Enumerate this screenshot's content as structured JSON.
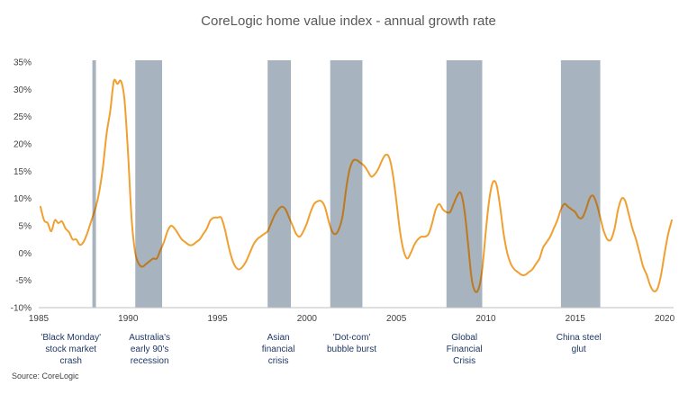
{
  "chart_data": {
    "type": "line",
    "title": "CoreLogic home value index - annual growth rate",
    "xlim": [
      1985,
      2020.5
    ],
    "ylim": [
      -10,
      35
    ],
    "grid": false,
    "y_ticks": [
      "35%",
      "30%",
      "25%",
      "20%",
      "15%",
      "10%",
      "5%",
      "0%",
      "-5%",
      "-10%"
    ],
    "x_ticks": [
      "1985",
      "1990",
      "1995",
      "2000",
      "2005",
      "2010",
      "2015",
      "2020"
    ],
    "line_color": "#F0A030",
    "line_color_in_band": "#B87A26",
    "band_color": "#A7B4C0",
    "bands": [
      {
        "start": 1988.0,
        "end": 1988.2,
        "label": [
          "'Black Monday'",
          "stock market",
          "crash"
        ],
        "label_x": 1986.8
      },
      {
        "start": 1990.4,
        "end": 1991.9,
        "label": [
          "Australia's",
          "early 90's",
          "recession"
        ],
        "label_x": 1991.2
      },
      {
        "start": 1997.8,
        "end": 1999.1,
        "label": [
          "Asian",
          "financial",
          "crisis"
        ],
        "label_x": 1998.4
      },
      {
        "start": 2001.3,
        "end": 2003.1,
        "label": [
          "'Dot-com'",
          "bubble burst"
        ],
        "label_x": 2002.5
      },
      {
        "start": 2007.8,
        "end": 2009.8,
        "label": [
          "Global",
          "Financial",
          "Crisis"
        ],
        "label_x": 2008.8
      },
      {
        "start": 2014.2,
        "end": 2016.4,
        "label": [
          "China steel",
          "glut"
        ],
        "label_x": 2015.2
      }
    ],
    "series": [
      {
        "points": [
          [
            1985.1,
            8.5
          ],
          [
            1985.3,
            6.0
          ],
          [
            1985.5,
            5.5
          ],
          [
            1985.7,
            4.0
          ],
          [
            1985.9,
            6.0
          ],
          [
            1986.1,
            5.5
          ],
          [
            1986.3,
            5.8
          ],
          [
            1986.5,
            4.5
          ],
          [
            1986.7,
            3.8
          ],
          [
            1986.9,
            2.5
          ],
          [
            1987.1,
            2.5
          ],
          [
            1987.3,
            1.5
          ],
          [
            1987.5,
            2.0
          ],
          [
            1987.7,
            3.5
          ],
          [
            1987.9,
            5.5
          ],
          [
            1988.0,
            6.5
          ],
          [
            1988.2,
            8.5
          ],
          [
            1988.4,
            11.5
          ],
          [
            1988.6,
            16.0
          ],
          [
            1988.8,
            22.0
          ],
          [
            1989.0,
            26.0
          ],
          [
            1989.2,
            31.5
          ],
          [
            1989.4,
            31.0
          ],
          [
            1989.6,
            31.5
          ],
          [
            1989.8,
            28.0
          ],
          [
            1990.0,
            18.0
          ],
          [
            1990.2,
            6.0
          ],
          [
            1990.4,
            0.0
          ],
          [
            1990.6,
            -2.0
          ],
          [
            1990.8,
            -2.5
          ],
          [
            1991.0,
            -2.0
          ],
          [
            1991.2,
            -1.5
          ],
          [
            1991.4,
            -1.0
          ],
          [
            1991.6,
            -1.0
          ],
          [
            1991.8,
            0.5
          ],
          [
            1992.0,
            2.0
          ],
          [
            1992.2,
            4.0
          ],
          [
            1992.4,
            5.0
          ],
          [
            1992.6,
            4.5
          ],
          [
            1992.8,
            3.5
          ],
          [
            1993.0,
            2.5
          ],
          [
            1993.2,
            2.0
          ],
          [
            1993.4,
            1.5
          ],
          [
            1993.6,
            1.5
          ],
          [
            1993.8,
            2.0
          ],
          [
            1994.0,
            2.5
          ],
          [
            1994.2,
            3.5
          ],
          [
            1994.4,
            4.5
          ],
          [
            1994.6,
            6.0
          ],
          [
            1994.8,
            6.5
          ],
          [
            1995.0,
            6.5
          ],
          [
            1995.2,
            6.5
          ],
          [
            1995.4,
            4.5
          ],
          [
            1995.6,
            1.5
          ],
          [
            1995.8,
            -1.0
          ],
          [
            1996.0,
            -2.5
          ],
          [
            1996.2,
            -3.0
          ],
          [
            1996.4,
            -2.5
          ],
          [
            1996.6,
            -1.5
          ],
          [
            1996.8,
            0.0
          ],
          [
            1997.0,
            1.5
          ],
          [
            1997.2,
            2.5
          ],
          [
            1997.4,
            3.0
          ],
          [
            1997.6,
            3.5
          ],
          [
            1997.8,
            4.0
          ],
          [
            1998.0,
            5.5
          ],
          [
            1998.2,
            7.0
          ],
          [
            1998.4,
            8.0
          ],
          [
            1998.6,
            8.5
          ],
          [
            1998.8,
            8.0
          ],
          [
            1999.0,
            6.5
          ],
          [
            1999.2,
            5.0
          ],
          [
            1999.4,
            3.5
          ],
          [
            1999.6,
            3.0
          ],
          [
            1999.8,
            4.0
          ],
          [
            2000.0,
            5.5
          ],
          [
            2000.2,
            7.5
          ],
          [
            2000.4,
            9.0
          ],
          [
            2000.6,
            9.5
          ],
          [
            2000.8,
            9.5
          ],
          [
            2001.0,
            8.5
          ],
          [
            2001.2,
            6.0
          ],
          [
            2001.4,
            4.0
          ],
          [
            2001.6,
            3.5
          ],
          [
            2001.8,
            4.5
          ],
          [
            2002.0,
            7.0
          ],
          [
            2002.2,
            12.0
          ],
          [
            2002.4,
            15.5
          ],
          [
            2002.6,
            17.0
          ],
          [
            2002.8,
            17.0
          ],
          [
            2003.0,
            16.5
          ],
          [
            2003.2,
            16.0
          ],
          [
            2003.4,
            15.0
          ],
          [
            2003.6,
            14.0
          ],
          [
            2003.8,
            14.5
          ],
          [
            2004.0,
            15.5
          ],
          [
            2004.2,
            17.0
          ],
          [
            2004.4,
            18.0
          ],
          [
            2004.6,
            17.5
          ],
          [
            2004.8,
            14.5
          ],
          [
            2005.0,
            9.5
          ],
          [
            2005.2,
            4.0
          ],
          [
            2005.4,
            0.5
          ],
          [
            2005.6,
            -1.0
          ],
          [
            2005.8,
            0.0
          ],
          [
            2006.0,
            1.5
          ],
          [
            2006.2,
            2.5
          ],
          [
            2006.4,
            3.0
          ],
          [
            2006.6,
            3.0
          ],
          [
            2006.8,
            3.5
          ],
          [
            2007.0,
            5.5
          ],
          [
            2007.2,
            8.0
          ],
          [
            2007.4,
            9.0
          ],
          [
            2007.6,
            8.0
          ],
          [
            2007.8,
            7.5
          ],
          [
            2008.0,
            7.5
          ],
          [
            2008.2,
            9.0
          ],
          [
            2008.4,
            10.5
          ],
          [
            2008.6,
            11.0
          ],
          [
            2008.8,
            8.0
          ],
          [
            2009.0,
            2.0
          ],
          [
            2009.2,
            -4.5
          ],
          [
            2009.4,
            -7.0
          ],
          [
            2009.6,
            -6.5
          ],
          [
            2009.8,
            -3.0
          ],
          [
            2010.0,
            4.0
          ],
          [
            2010.2,
            10.0
          ],
          [
            2010.4,
            13.0
          ],
          [
            2010.6,
            12.5
          ],
          [
            2010.8,
            8.5
          ],
          [
            2011.0,
            3.5
          ],
          [
            2011.2,
            0.0
          ],
          [
            2011.4,
            -2.0
          ],
          [
            2011.6,
            -3.0
          ],
          [
            2011.8,
            -3.5
          ],
          [
            2012.0,
            -4.0
          ],
          [
            2012.2,
            -4.0
          ],
          [
            2012.4,
            -3.5
          ],
          [
            2012.6,
            -3.0
          ],
          [
            2012.8,
            -2.0
          ],
          [
            2013.0,
            -1.0
          ],
          [
            2013.2,
            1.0
          ],
          [
            2013.4,
            2.0
          ],
          [
            2013.6,
            3.0
          ],
          [
            2013.8,
            4.5
          ],
          [
            2014.0,
            6.0
          ],
          [
            2014.2,
            8.0
          ],
          [
            2014.4,
            9.0
          ],
          [
            2014.6,
            8.5
          ],
          [
            2014.8,
            8.0
          ],
          [
            2015.0,
            7.5
          ],
          [
            2015.2,
            6.5
          ],
          [
            2015.4,
            6.5
          ],
          [
            2015.6,
            8.0
          ],
          [
            2015.8,
            10.0
          ],
          [
            2016.0,
            10.5
          ],
          [
            2016.2,
            9.0
          ],
          [
            2016.4,
            6.5
          ],
          [
            2016.6,
            4.0
          ],
          [
            2016.8,
            2.5
          ],
          [
            2017.0,
            2.5
          ],
          [
            2017.2,
            4.5
          ],
          [
            2017.4,
            8.0
          ],
          [
            2017.6,
            10.0
          ],
          [
            2017.8,
            9.5
          ],
          [
            2018.0,
            7.0
          ],
          [
            2018.2,
            4.5
          ],
          [
            2018.4,
            2.5
          ],
          [
            2018.6,
            0.0
          ],
          [
            2018.8,
            -2.5
          ],
          [
            2019.0,
            -4.0
          ],
          [
            2019.2,
            -6.0
          ],
          [
            2019.4,
            -7.0
          ],
          [
            2019.6,
            -6.5
          ],
          [
            2019.8,
            -4.0
          ],
          [
            2020.0,
            0.0
          ],
          [
            2020.2,
            3.5
          ],
          [
            2020.4,
            6.0
          ]
        ]
      }
    ]
  },
  "source": "Source: CoreLogic"
}
